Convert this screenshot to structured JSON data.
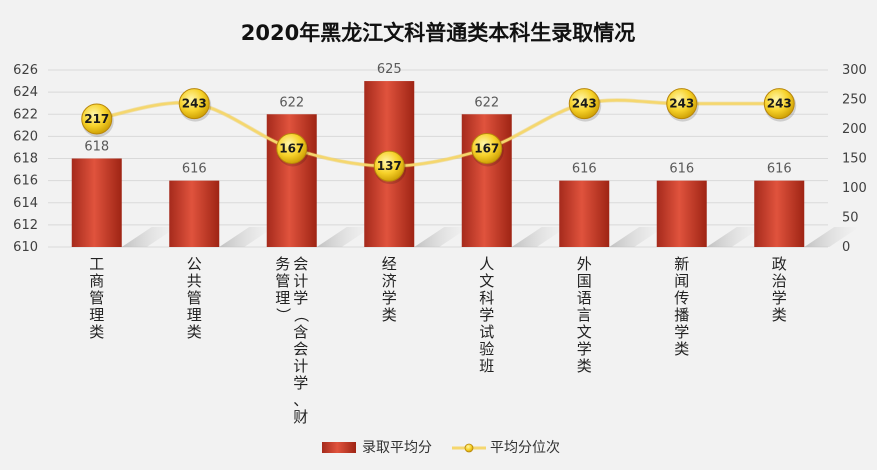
{
  "chart_data": {
    "type": "bar",
    "title": "2020年黑龙江文科普通类本科生录取情况",
    "categories": [
      "工商管理类",
      "公共管理类",
      "会计学（含会计学、财务管理）",
      "经济学类",
      "人文科学试验班",
      "外国语言文学类",
      "新闻传播学类",
      "政治学类"
    ],
    "category_lines": [
      [
        "工商管理类"
      ],
      [
        "公共管理类"
      ],
      [
        "会计学（含会计学、财",
        "务管理）"
      ],
      [
        "经济学类"
      ],
      [
        "人文科学试验班"
      ],
      [
        "外国语言文学类"
      ],
      [
        "新闻传播学类"
      ],
      [
        "政治学类"
      ]
    ],
    "series": [
      {
        "name": "录取平均分",
        "type": "bar",
        "axis": "left",
        "values": [
          618,
          616,
          622,
          625,
          622,
          616,
          616,
          616
        ],
        "color": "#c0392b"
      },
      {
        "name": "平均分位次",
        "type": "line",
        "axis": "right",
        "values": [
          217,
          243,
          167,
          137,
          167,
          243,
          243,
          243
        ],
        "color": "#f5d76e"
      }
    ],
    "y_left": {
      "min": 610,
      "max": 626,
      "ticks": [
        610,
        612,
        614,
        616,
        618,
        620,
        622,
        624,
        626
      ]
    },
    "y_right": {
      "min": 0,
      "max": 300,
      "ticks": [
        0,
        50,
        100,
        150,
        200,
        250,
        300
      ]
    },
    "grid": true,
    "legend_position": "bottom"
  }
}
